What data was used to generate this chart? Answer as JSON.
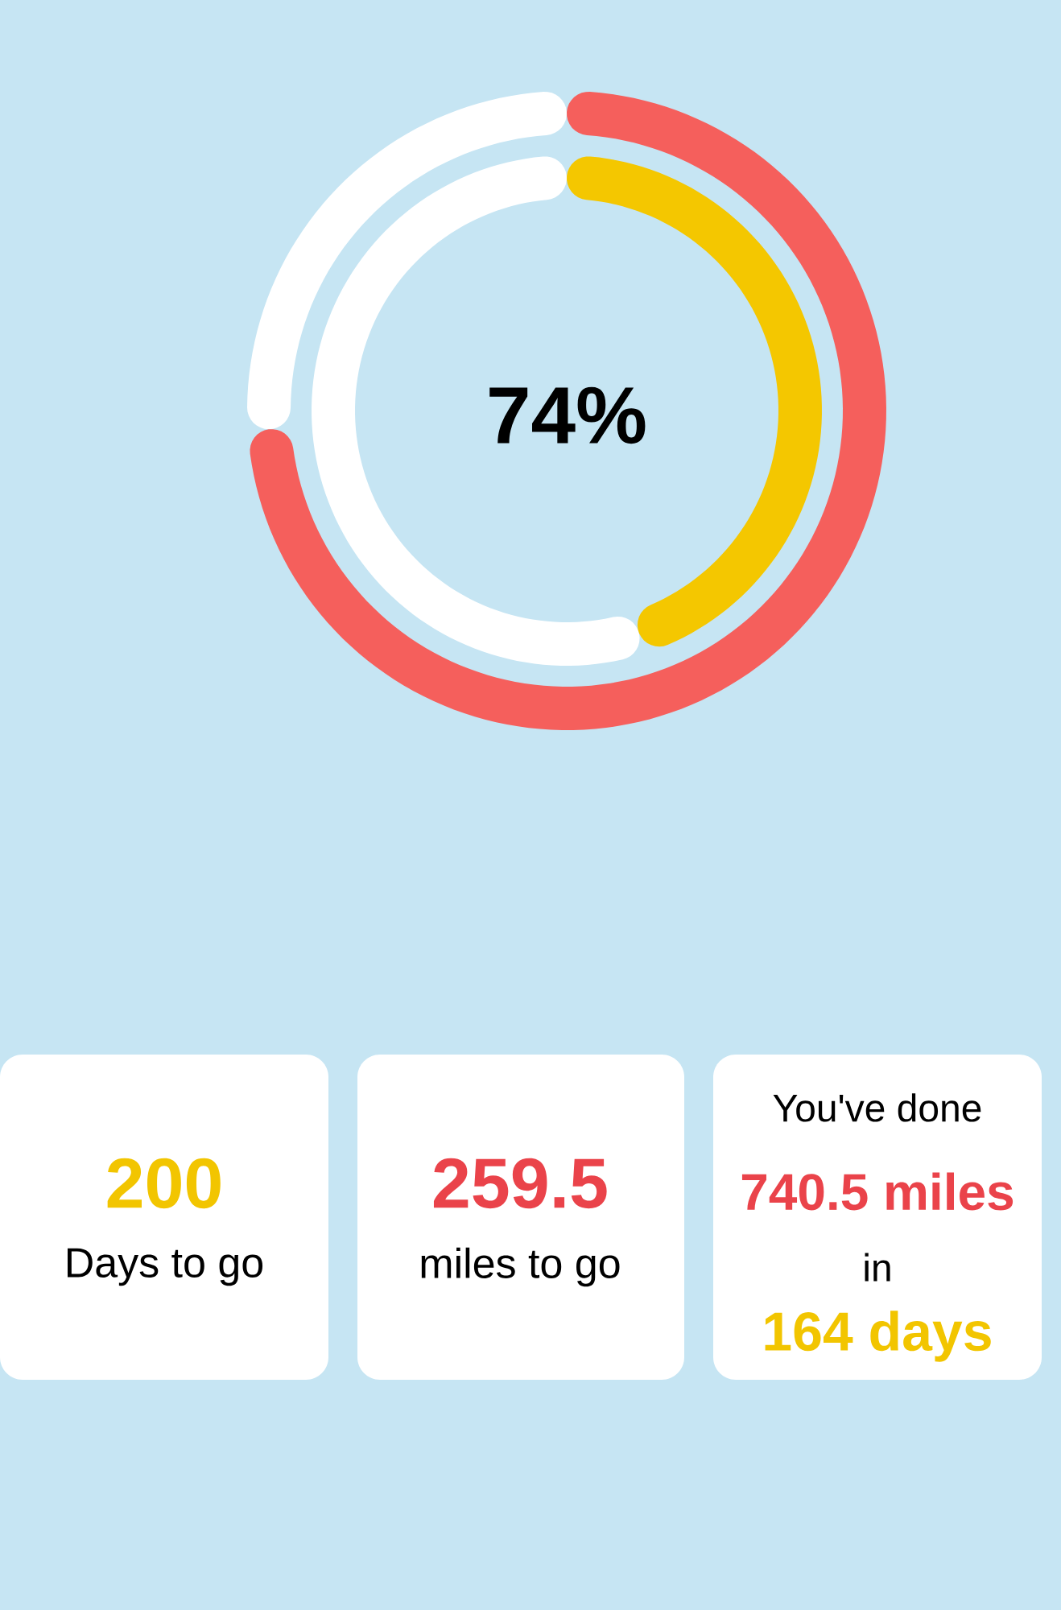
{
  "chart_data": {
    "type": "donut",
    "categories": [
      null,
      null
    ],
    "series": [
      {
        "values": [
          74,
          26
        ],
        "colors": [
          "#f55f5c",
          "#ffffff"
        ]
      },
      {
        "values": [
          45,
          55
        ],
        "colors": [
          "#f4c700",
          "#ffffff"
        ]
      }
    ],
    "annotations": [
      "74%",
      "200",
      "Days to go",
      "259.5",
      "miles to go",
      "You've done",
      "740.5 miles",
      "in",
      "164 days"
    ]
  }
}
